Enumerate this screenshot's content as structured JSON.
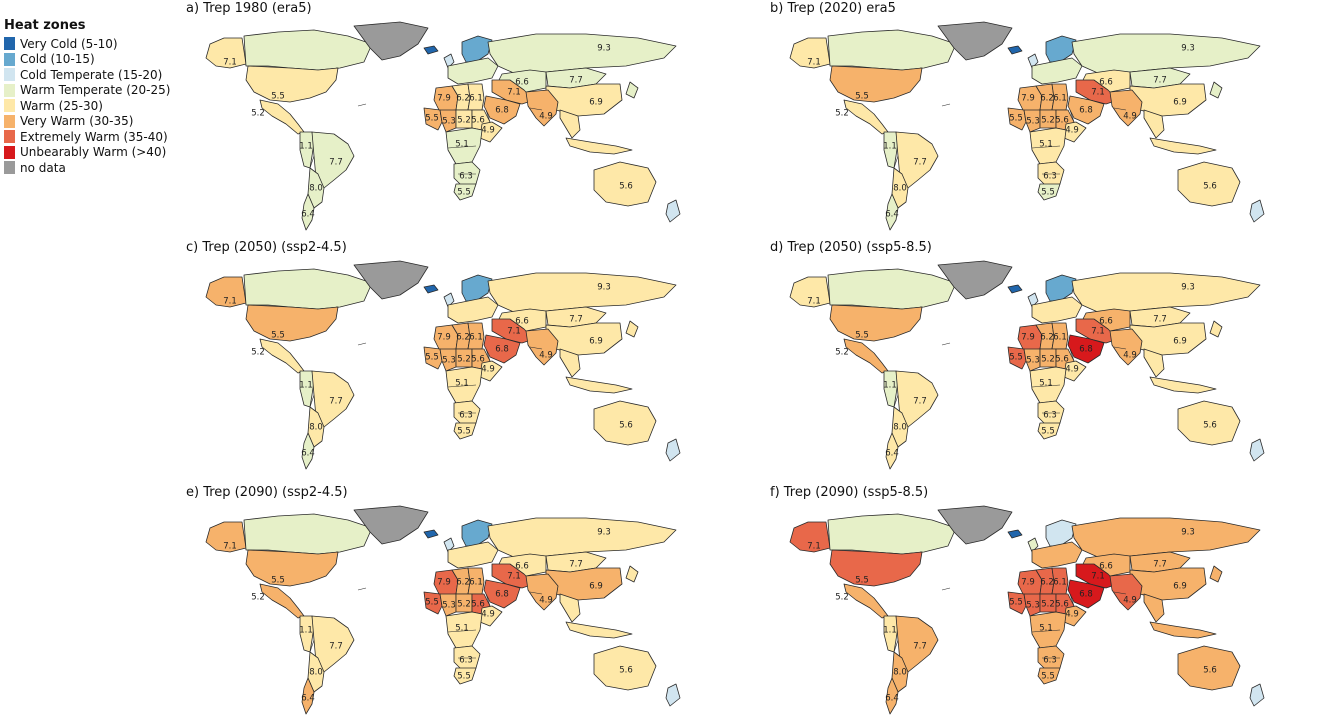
{
  "legend": {
    "title": "Heat zones",
    "items": [
      {
        "key": "very_cold",
        "label": "Very Cold (5-10)",
        "color": "#2166ac"
      },
      {
        "key": "cold",
        "label": "Cold (10-15)",
        "color": "#67a9cf"
      },
      {
        "key": "cold_temperate",
        "label": "Cold Temperate (15-20)",
        "color": "#d1e5f0"
      },
      {
        "key": "warm_temperate",
        "label": "Warm Temperate (20-25)",
        "color": "#e6f0c8"
      },
      {
        "key": "warm",
        "label": "Warm (25-30)",
        "color": "#fee8a8"
      },
      {
        "key": "very_warm",
        "label": "Very Warm (30-35)",
        "color": "#f6b26b"
      },
      {
        "key": "extremely_warm",
        "label": "Extremely Warm (35-40)",
        "color": "#e8684a"
      },
      {
        "key": "unbearably_warm",
        "label": "Unbearably Warm (>40)",
        "color": "#d7191c"
      },
      {
        "key": "no_data",
        "label": "no data",
        "color": "#9a9a9a"
      }
    ]
  },
  "region_labels": {
    "canada": "7.1",
    "usa": "5.5",
    "central_america": "5.2",
    "andean": "1.1",
    "brazil": "7.7",
    "southern_cone": "8.0",
    "patagonia": "6.4",
    "russia": "9.3",
    "central_asia": "6.6",
    "mongolia": "7.7",
    "china": "6.9",
    "middle_east": "7.1",
    "arabia": "6.8",
    "south_asia": "4.9",
    "north_africa_west": "7.9",
    "north_africa_central": "6.2",
    "north_africa_east": "6.1",
    "west_africa": "5.5",
    "sahel_west": "5.3",
    "sahel_central": "5.2",
    "sahel_east": "5.6",
    "horn_africa": "4.9",
    "central_africa": "5.1",
    "southern_africa": "6.3",
    "south_africa": "5.5",
    "australia": "5.6"
  },
  "panels": [
    {
      "title": "a) Trep 1980 (era5)",
      "zones": {
        "alaska": "warm",
        "canada": "warm_temperate",
        "greenland": "no_data",
        "usa": "warm",
        "central_america": "warm",
        "andean": "warm_temperate",
        "brazil": "warm_temperate",
        "southern_cone": "warm_temperate",
        "patagonia": "warm_temperate",
        "iceland": "very_cold",
        "scandinavia": "cold",
        "uk": "cold_temperate",
        "europe": "warm_temperate",
        "russia": "warm_temperate",
        "central_asia": "warm_temperate",
        "mongolia": "warm_temperate",
        "china": "warm",
        "middle_east": "very_warm",
        "arabia": "very_warm",
        "south_asia": "very_warm",
        "north_africa_west": "very_warm",
        "north_africa_central": "warm",
        "north_africa_east": "warm",
        "west_africa": "very_warm",
        "sahel_west": "very_warm",
        "sahel_central": "warm",
        "sahel_east": "warm",
        "horn_africa": "warm",
        "central_africa": "warm_temperate",
        "southern_africa": "warm_temperate",
        "south_africa": "warm_temperate",
        "se_asia": "warm",
        "japan": "warm_temperate",
        "indonesia": "warm",
        "australia": "warm",
        "new_zealand": "cold_temperate"
      }
    },
    {
      "title": "b) Trep (2020) era5",
      "zones": {
        "alaska": "warm",
        "canada": "warm_temperate",
        "greenland": "no_data",
        "usa": "very_warm",
        "central_america": "warm",
        "andean": "warm_temperate",
        "brazil": "warm",
        "southern_cone": "warm",
        "patagonia": "warm_temperate",
        "iceland": "very_cold",
        "scandinavia": "cold",
        "uk": "cold_temperate",
        "europe": "warm_temperate",
        "russia": "warm_temperate",
        "central_asia": "warm",
        "mongolia": "warm_temperate",
        "china": "warm",
        "middle_east": "extremely_warm",
        "arabia": "very_warm",
        "south_asia": "very_warm",
        "north_africa_west": "very_warm",
        "north_africa_central": "very_warm",
        "north_africa_east": "very_warm",
        "west_africa": "very_warm",
        "sahel_west": "very_warm",
        "sahel_central": "very_warm",
        "sahel_east": "very_warm",
        "horn_africa": "warm",
        "central_africa": "warm",
        "southern_africa": "warm",
        "south_africa": "warm_temperate",
        "se_asia": "warm",
        "japan": "warm_temperate",
        "indonesia": "warm",
        "australia": "warm",
        "new_zealand": "cold_temperate"
      }
    },
    {
      "title": "c) Trep (2050) (ssp2-4.5)",
      "zones": {
        "alaska": "very_warm",
        "canada": "warm_temperate",
        "greenland": "no_data",
        "usa": "very_warm",
        "central_america": "warm",
        "andean": "warm_temperate",
        "brazil": "warm",
        "southern_cone": "warm",
        "patagonia": "warm_temperate",
        "iceland": "very_cold",
        "scandinavia": "cold",
        "uk": "cold_temperate",
        "europe": "warm",
        "russia": "warm",
        "central_asia": "warm",
        "mongolia": "warm",
        "china": "warm",
        "middle_east": "extremely_warm",
        "arabia": "extremely_warm",
        "south_asia": "very_warm",
        "north_africa_west": "very_warm",
        "north_africa_central": "very_warm",
        "north_africa_east": "very_warm",
        "west_africa": "very_warm",
        "sahel_west": "very_warm",
        "sahel_central": "very_warm",
        "sahel_east": "very_warm",
        "horn_africa": "warm",
        "central_africa": "warm",
        "southern_africa": "warm",
        "south_africa": "warm",
        "se_asia": "warm",
        "japan": "warm",
        "indonesia": "warm",
        "australia": "warm",
        "new_zealand": "cold_temperate"
      }
    },
    {
      "title": "d) Trep (2050) (ssp5-8.5)",
      "zones": {
        "alaska": "warm",
        "canada": "warm_temperate",
        "greenland": "no_data",
        "usa": "very_warm",
        "central_america": "very_warm",
        "andean": "warm_temperate",
        "brazil": "warm",
        "southern_cone": "warm",
        "patagonia": "warm",
        "iceland": "very_cold",
        "scandinavia": "cold",
        "uk": "cold_temperate",
        "europe": "warm",
        "russia": "warm",
        "central_asia": "very_warm",
        "mongolia": "warm",
        "china": "warm",
        "middle_east": "extremely_warm",
        "arabia": "unbearably_warm",
        "south_asia": "very_warm",
        "north_africa_west": "extremely_warm",
        "north_africa_central": "very_warm",
        "north_africa_east": "very_warm",
        "west_africa": "extremely_warm",
        "sahel_west": "very_warm",
        "sahel_central": "very_warm",
        "sahel_east": "very_warm",
        "horn_africa": "warm",
        "central_africa": "warm",
        "southern_africa": "warm",
        "south_africa": "warm",
        "se_asia": "warm",
        "japan": "warm",
        "indonesia": "warm",
        "australia": "warm",
        "new_zealand": "cold_temperate"
      }
    },
    {
      "title": "e) Trep (2090) (ssp2-4.5)",
      "zones": {
        "alaska": "very_warm",
        "canada": "warm_temperate",
        "greenland": "no_data",
        "usa": "very_warm",
        "central_america": "very_warm",
        "andean": "warm",
        "brazil": "warm",
        "southern_cone": "warm",
        "patagonia": "very_warm",
        "iceland": "very_cold",
        "scandinavia": "cold",
        "uk": "cold_temperate",
        "europe": "warm",
        "russia": "warm",
        "central_asia": "warm",
        "mongolia": "warm",
        "china": "very_warm",
        "middle_east": "extremely_warm",
        "arabia": "extremely_warm",
        "south_asia": "very_warm",
        "north_africa_west": "extremely_warm",
        "north_africa_central": "very_warm",
        "north_africa_east": "very_warm",
        "west_africa": "extremely_warm",
        "sahel_west": "very_warm",
        "sahel_central": "very_warm",
        "sahel_east": "extremely_warm",
        "horn_africa": "warm",
        "central_africa": "warm",
        "southern_africa": "warm",
        "south_africa": "warm",
        "se_asia": "warm",
        "japan": "warm",
        "indonesia": "warm",
        "australia": "warm",
        "new_zealand": "cold_temperate"
      }
    },
    {
      "title": "f) Trep (2090) (ssp5-8.5)",
      "zones": {
        "alaska": "extremely_warm",
        "canada": "warm_temperate",
        "greenland": "no_data",
        "usa": "extremely_warm",
        "central_america": "very_warm",
        "andean": "warm",
        "brazil": "very_warm",
        "southern_cone": "very_warm",
        "patagonia": "very_warm",
        "iceland": "very_cold",
        "scandinavia": "cold_temperate",
        "uk": "warm_temperate",
        "europe": "very_warm",
        "russia": "very_warm",
        "central_asia": "very_warm",
        "mongolia": "very_warm",
        "china": "very_warm",
        "middle_east": "unbearably_warm",
        "arabia": "unbearably_warm",
        "south_asia": "extremely_warm",
        "north_africa_west": "extremely_warm",
        "north_africa_central": "extremely_warm",
        "north_africa_east": "extremely_warm",
        "west_africa": "extremely_warm",
        "sahel_west": "extremely_warm",
        "sahel_central": "extremely_warm",
        "sahel_east": "extremely_warm",
        "horn_africa": "very_warm",
        "central_africa": "very_warm",
        "southern_africa": "very_warm",
        "south_africa": "very_warm",
        "se_asia": "very_warm",
        "japan": "very_warm",
        "indonesia": "very_warm",
        "australia": "very_warm",
        "new_zealand": "cold_temperate"
      }
    }
  ]
}
